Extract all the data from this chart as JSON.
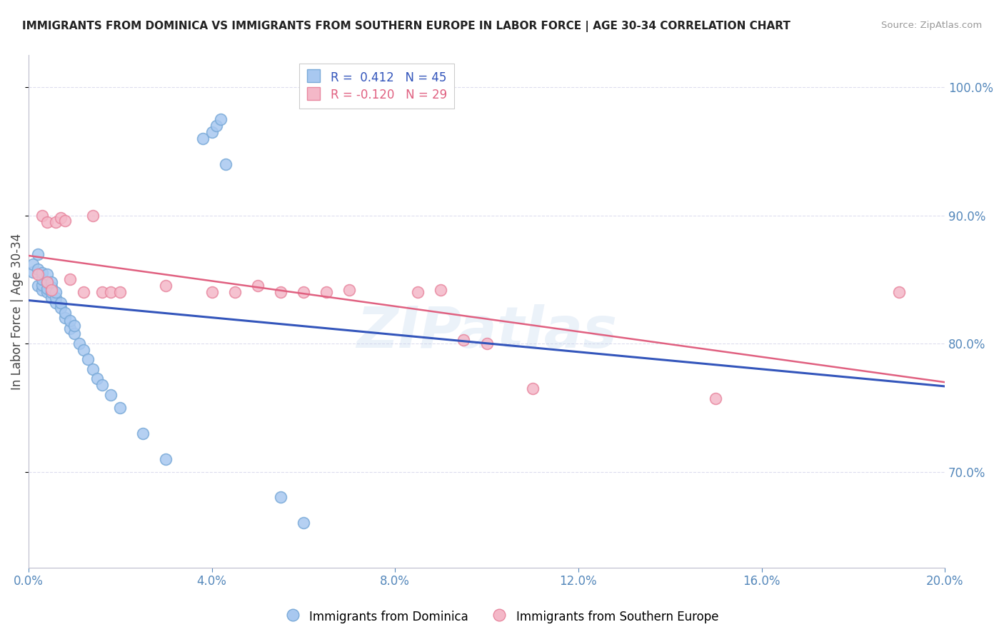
{
  "title": "IMMIGRANTS FROM DOMINICA VS IMMIGRANTS FROM SOUTHERN EUROPE IN LABOR FORCE | AGE 30-34 CORRELATION CHART",
  "source": "Source: ZipAtlas.com",
  "ylabel": "In Labor Force | Age 30-34",
  "r_blue": 0.412,
  "n_blue": 45,
  "r_pink": -0.12,
  "n_pink": 29,
  "blue_label": "Immigrants from Dominica",
  "pink_label": "Immigrants from Southern Europe",
  "xlim": [
    0.0,
    0.2
  ],
  "ylim": [
    0.625,
    1.025
  ],
  "yticks": [
    0.7,
    0.8,
    0.9,
    1.0
  ],
  "xticks": [
    0.0,
    0.04,
    0.08,
    0.12,
    0.16,
    0.2
  ],
  "blue_color": "#a8c8f0",
  "blue_edge_color": "#7aaad8",
  "blue_line_color": "#3355bb",
  "pink_color": "#f4b8c8",
  "pink_edge_color": "#e888a0",
  "pink_line_color": "#e06080",
  "title_color": "#222222",
  "axis_label_color": "#5588bb",
  "grid_color": "#ddddee",
  "watermark": "ZIPatlas",
  "blue_x": [
    0.001,
    0.001,
    0.002,
    0.002,
    0.002,
    0.003,
    0.003,
    0.003,
    0.003,
    0.004,
    0.004,
    0.004,
    0.004,
    0.005,
    0.005,
    0.005,
    0.005,
    0.006,
    0.006,
    0.006,
    0.007,
    0.007,
    0.008,
    0.008,
    0.009,
    0.009,
    0.01,
    0.01,
    0.011,
    0.012,
    0.013,
    0.014,
    0.015,
    0.016,
    0.018,
    0.02,
    0.025,
    0.03,
    0.038,
    0.04,
    0.041,
    0.042,
    0.043,
    0.055,
    0.06
  ],
  "blue_y": [
    0.856,
    0.862,
    0.845,
    0.858,
    0.87,
    0.842,
    0.846,
    0.85,
    0.855,
    0.84,
    0.843,
    0.848,
    0.854,
    0.836,
    0.84,
    0.844,
    0.848,
    0.832,
    0.836,
    0.84,
    0.828,
    0.832,
    0.82,
    0.824,
    0.812,
    0.818,
    0.808,
    0.814,
    0.8,
    0.795,
    0.788,
    0.78,
    0.773,
    0.768,
    0.76,
    0.75,
    0.73,
    0.71,
    0.96,
    0.965,
    0.97,
    0.975,
    0.94,
    0.68,
    0.66
  ],
  "pink_x": [
    0.002,
    0.003,
    0.004,
    0.004,
    0.005,
    0.006,
    0.007,
    0.008,
    0.009,
    0.012,
    0.014,
    0.016,
    0.018,
    0.02,
    0.03,
    0.04,
    0.045,
    0.05,
    0.055,
    0.06,
    0.065,
    0.07,
    0.085,
    0.09,
    0.095,
    0.1,
    0.11,
    0.15,
    0.19
  ],
  "pink_y": [
    0.854,
    0.9,
    0.895,
    0.848,
    0.842,
    0.895,
    0.898,
    0.896,
    0.85,
    0.84,
    0.9,
    0.84,
    0.84,
    0.84,
    0.845,
    0.84,
    0.84,
    0.845,
    0.84,
    0.84,
    0.84,
    0.842,
    0.84,
    0.842,
    0.803,
    0.8,
    0.765,
    0.757,
    0.84
  ]
}
